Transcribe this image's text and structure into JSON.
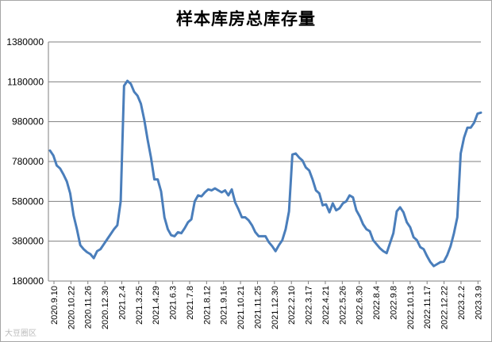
{
  "chart_data": {
    "type": "line",
    "title": "样本库房总库存量",
    "xlabel": "",
    "ylabel": "",
    "ylim": [
      180000,
      1380000
    ],
    "yticks": [
      180000,
      380000,
      580000,
      780000,
      980000,
      1180000,
      1380000
    ],
    "ytick_labels": [
      "180000",
      "380000",
      "580000",
      "780000",
      "980000",
      "1180000",
      "1380000"
    ],
    "xtick_labels": [
      "2020.9.10",
      "2020.10.22",
      "2020.11.26",
      "2020.12.30",
      "2021.2.4",
      "2021.3.25",
      "2021.4.29",
      "2021.6.3",
      "2021.7.8",
      "2021.8.12",
      "2021.9.16",
      "2021.10.21",
      "2021.11.25",
      "2021.12.30",
      "2022.2.10",
      "2022.3.17",
      "2022.4.21",
      "2022.5.26",
      "2022.6.30",
      "2022.8.4",
      "2022.9.8",
      "2022.10.13",
      "2022.11.17",
      "2022.12.22",
      "2023.2.2",
      "2023.3.9"
    ],
    "grid": true,
    "series": [
      {
        "color": "#4a7ebb",
        "values": [
          835000,
          810000,
          760000,
          745000,
          715000,
          680000,
          620000,
          510000,
          440000,
          360000,
          340000,
          325000,
          315000,
          295000,
          330000,
          340000,
          365000,
          390000,
          415000,
          440000,
          460000,
          580000,
          1160000,
          1185000,
          1170000,
          1130000,
          1110000,
          1070000,
          990000,
          890000,
          800000,
          690000,
          690000,
          630000,
          500000,
          440000,
          410000,
          405000,
          425000,
          420000,
          445000,
          475000,
          490000,
          580000,
          610000,
          605000,
          625000,
          640000,
          635000,
          645000,
          635000,
          625000,
          635000,
          610000,
          640000,
          575000,
          540000,
          500000,
          500000,
          485000,
          460000,
          425000,
          405000,
          405000,
          405000,
          375000,
          355000,
          330000,
          360000,
          385000,
          440000,
          530000,
          815000,
          820000,
          800000,
          785000,
          750000,
          735000,
          690000,
          635000,
          620000,
          560000,
          565000,
          525000,
          570000,
          535000,
          545000,
          570000,
          580000,
          610000,
          600000,
          535000,
          505000,
          465000,
          440000,
          430000,
          385000,
          365000,
          345000,
          330000,
          320000,
          370000,
          420000,
          530000,
          550000,
          525000,
          475000,
          450000,
          400000,
          385000,
          350000,
          340000,
          305000,
          275000,
          255000,
          265000,
          275000,
          278000,
          310000,
          355000,
          420000,
          500000,
          820000,
          900000,
          950000,
          950000,
          975000,
          1020000,
          1025000
        ]
      }
    ]
  },
  "watermark": "大豆圈区"
}
